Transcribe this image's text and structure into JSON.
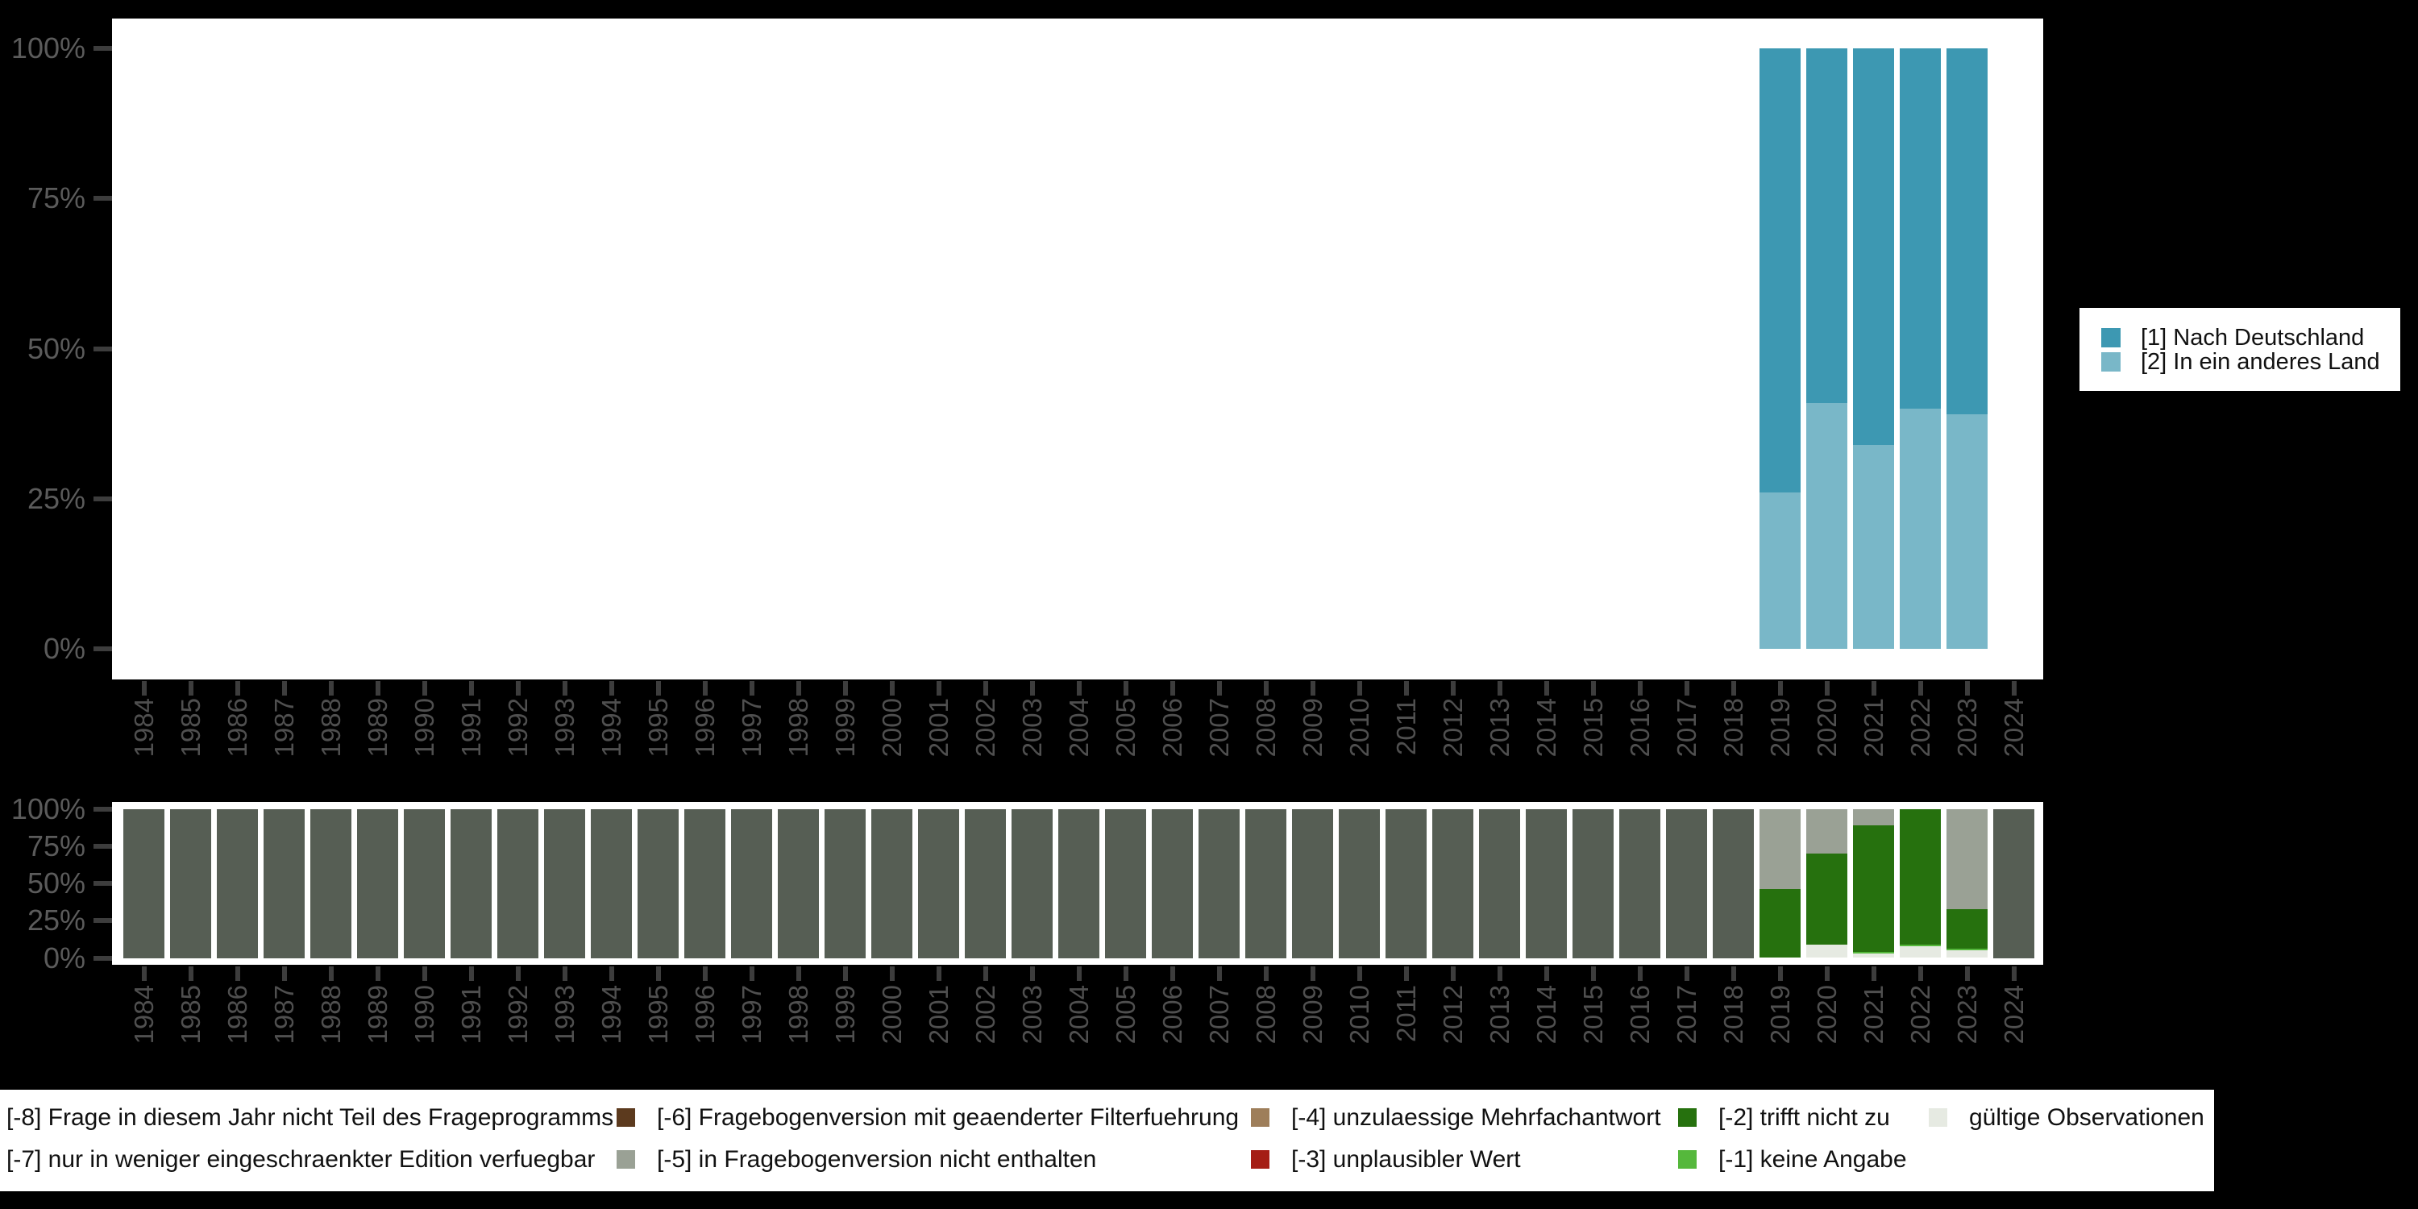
{
  "title": "",
  "years": [
    "1984",
    "1985",
    "1986",
    "1987",
    "1988",
    "1989",
    "1990",
    "1991",
    "1992",
    "1993",
    "1994",
    "1995",
    "1996",
    "1997",
    "1998",
    "1999",
    "2000",
    "2001",
    "2002",
    "2003",
    "2004",
    "2005",
    "2006",
    "2007",
    "2008",
    "2009",
    "2010",
    "2011",
    "2012",
    "2013",
    "2014",
    "2015",
    "2016",
    "2017",
    "2018",
    "2019",
    "2020",
    "2021",
    "2022",
    "2023",
    "2024"
  ],
  "colors": {
    "1": "#3D98B2",
    "2": "#79B7C8",
    "-1": "#55B83C",
    "-2": "#26710E",
    "-3": "#A51E15",
    "-4": "#9E7E5A",
    "-5": "#9AA195",
    "-6": "#5C3A1E",
    "-8": "#565E54",
    "valid": "#E6EAE2"
  },
  "ui_colors": {
    "background": "#000000",
    "plot_background": "#FFFFFF",
    "axis_tick": "#3D3D3D",
    "y_tick_label_text": "#5B5B5B",
    "x_tick_label_text": "#4F4F4F",
    "legend_text": "#111111",
    "legend_background": "#FFFFFF"
  },
  "chart_data": [
    {
      "type": "bar",
      "stacked": true,
      "unit": "percent",
      "ylim": [
        0,
        100
      ],
      "grid": false,
      "yticks": [
        "100%",
        "75%",
        "50%",
        "25%",
        "0%"
      ],
      "x_years": [
        "1984",
        "1985",
        "1986",
        "1987",
        "1988",
        "1989",
        "1990",
        "1991",
        "1992",
        "1993",
        "1994",
        "1995",
        "1996",
        "1997",
        "1998",
        "1999",
        "2000",
        "2001",
        "2002",
        "2003",
        "2004",
        "2005",
        "2006",
        "2007",
        "2008",
        "2009",
        "2010",
        "2011",
        "2012",
        "2013",
        "2014",
        "2015",
        "2016",
        "2017",
        "2018",
        "2019",
        "2020",
        "2021",
        "2022",
        "2023",
        "2024"
      ],
      "legend_position": "right",
      "series": [
        {
          "key": "1",
          "name": "[1] Nach Deutschland",
          "values_by_year": {
            "2019": 74,
            "2020": 59,
            "2021": 66,
            "2022": 60,
            "2023": 61
          }
        },
        {
          "key": "2",
          "name": "[2] In ein anderes Land",
          "values_by_year": {
            "2019": 26,
            "2020": 41,
            "2021": 34,
            "2022": 40,
            "2023": 39
          }
        }
      ]
    },
    {
      "type": "bar",
      "stacked": true,
      "unit": "percent",
      "ylim": [
        0,
        100
      ],
      "grid": false,
      "yticks": [
        "100%",
        "75%",
        "50%",
        "25%",
        "0%"
      ],
      "x_years": [
        "1984",
        "1985",
        "1986",
        "1987",
        "1988",
        "1989",
        "1990",
        "1991",
        "1992",
        "1993",
        "1994",
        "1995",
        "1996",
        "1997",
        "1998",
        "1999",
        "2000",
        "2001",
        "2002",
        "2003",
        "2004",
        "2005",
        "2006",
        "2007",
        "2008",
        "2009",
        "2010",
        "2011",
        "2012",
        "2013",
        "2014",
        "2015",
        "2016",
        "2017",
        "2018",
        "2019",
        "2020",
        "2021",
        "2022",
        "2023",
        "2024"
      ],
      "legend_position": "bottom",
      "series": [
        {
          "key": "-8",
          "name": "[-8] Frage in diesem Jahr nicht Teil des Frageprogramms",
          "values_by_year": {
            "1984": 100,
            "1985": 100,
            "1986": 100,
            "1987": 100,
            "1988": 100,
            "1989": 100,
            "1990": 100,
            "1991": 100,
            "1992": 100,
            "1993": 100,
            "1994": 100,
            "1995": 100,
            "1996": 100,
            "1997": 100,
            "1998": 100,
            "1999": 100,
            "2000": 100,
            "2001": 100,
            "2002": 100,
            "2003": 100,
            "2004": 100,
            "2005": 100,
            "2006": 100,
            "2007": 100,
            "2008": 100,
            "2009": 100,
            "2010": 100,
            "2011": 100,
            "2012": 100,
            "2013": 100,
            "2014": 100,
            "2015": 100,
            "2016": 100,
            "2017": 100,
            "2018": 100,
            "2024": 100
          }
        },
        {
          "key": "-5",
          "name": "[-5] in Fragebogenversion nicht enthalten",
          "values_by_year": {
            "2019": 53.5,
            "2020": 30,
            "2021": 11,
            "2023": 67
          }
        },
        {
          "key": "-2",
          "name": "[-2] trifft nicht zu",
          "values_by_year": {
            "2019": 46.5,
            "2020": 61,
            "2021": 85,
            "2022": 91,
            "2023": 27
          }
        },
        {
          "key": "-1",
          "name": "[-1] keine Angabe",
          "values_by_year": {
            "2021": 1,
            "2022": 1,
            "2023": 1
          }
        },
        {
          "key": "valid",
          "name": "gültige Observationen",
          "values_by_year": {
            "2020": 9,
            "2021": 3,
            "2022": 8,
            "2023": 5
          }
        }
      ],
      "legend_rows": [
        [
          {
            "key": "-8",
            "label": "[-8] Frage in diesem Jahr nicht Teil des Frageprogramms",
            "key_cropped": true
          },
          {
            "key": "-6",
            "label": "[-6] Fragebogenversion mit geaenderter Filterfuehrung"
          },
          {
            "key": "-4",
            "label": "[-4] unzulaessige Mehrfachantwort"
          },
          {
            "key": "-2",
            "label": "[-2] trifft nicht zu"
          },
          {
            "key": "valid",
            "label": "gültige Observationen"
          }
        ],
        [
          {
            "key": "-7",
            "label": "[-7] nur in weniger eingeschraenkter Edition verfuegbar",
            "key_cropped": true
          },
          {
            "key": "-5",
            "label": "[-5] in Fragebogenversion nicht enthalten"
          },
          {
            "key": "-3",
            "label": "[-3] unplausibler Wert"
          },
          {
            "key": "-1",
            "label": "[-1] keine Angabe"
          }
        ]
      ]
    }
  ]
}
